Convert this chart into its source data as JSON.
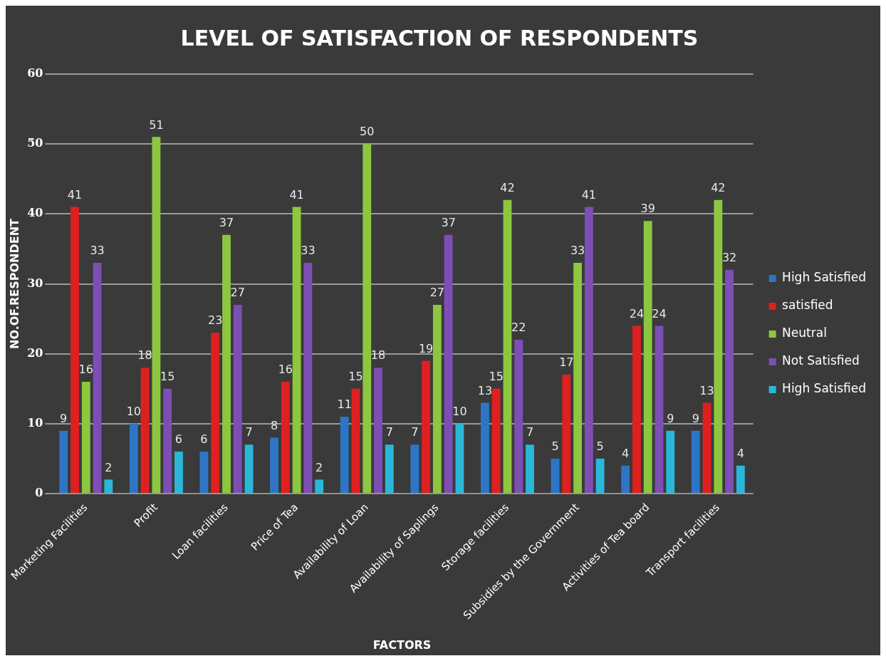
{
  "chart_data": {
    "type": "bar",
    "title": "LEVEL OF SATISFACTION OF RESPONDENTS",
    "xlabel": "FACTORS",
    "ylabel": "NO.OF.RESPONDENT",
    "categories": [
      "Marketing Facilities",
      "Profit",
      "Loan facilities",
      "Price of Tea",
      "Availability of Loan",
      "Availability of Saplings",
      "Storage facilities",
      "Subsidies by the Government",
      "Activities of Tea board",
      "Transport facilities"
    ],
    "series": [
      {
        "name": "High Satisfied",
        "color": "#2e75c6",
        "values": [
          9,
          10,
          6,
          8,
          11,
          7,
          13,
          5,
          4,
          9
        ]
      },
      {
        "name": "satisfied",
        "color": "#e02020",
        "values": [
          41,
          18,
          23,
          16,
          15,
          19,
          15,
          17,
          24,
          13
        ]
      },
      {
        "name": "Neutral",
        "color": "#8dc63f",
        "values": [
          16,
          51,
          37,
          41,
          50,
          27,
          42,
          33,
          39,
          42
        ]
      },
      {
        "name": "Not Satisfied",
        "color": "#7d4fb5",
        "values": [
          33,
          15,
          27,
          33,
          18,
          37,
          22,
          41,
          24,
          32
        ]
      },
      {
        "name": "High Satisfied",
        "color": "#2ab7d9",
        "values": [
          2,
          6,
          7,
          2,
          7,
          10,
          7,
          5,
          9,
          4
        ]
      }
    ],
    "ylim": [
      0,
      60
    ],
    "yticks": [
      0,
      10,
      20,
      30,
      40,
      50,
      60
    ],
    "grid": "y",
    "legend": "right",
    "data_labels": true
  }
}
